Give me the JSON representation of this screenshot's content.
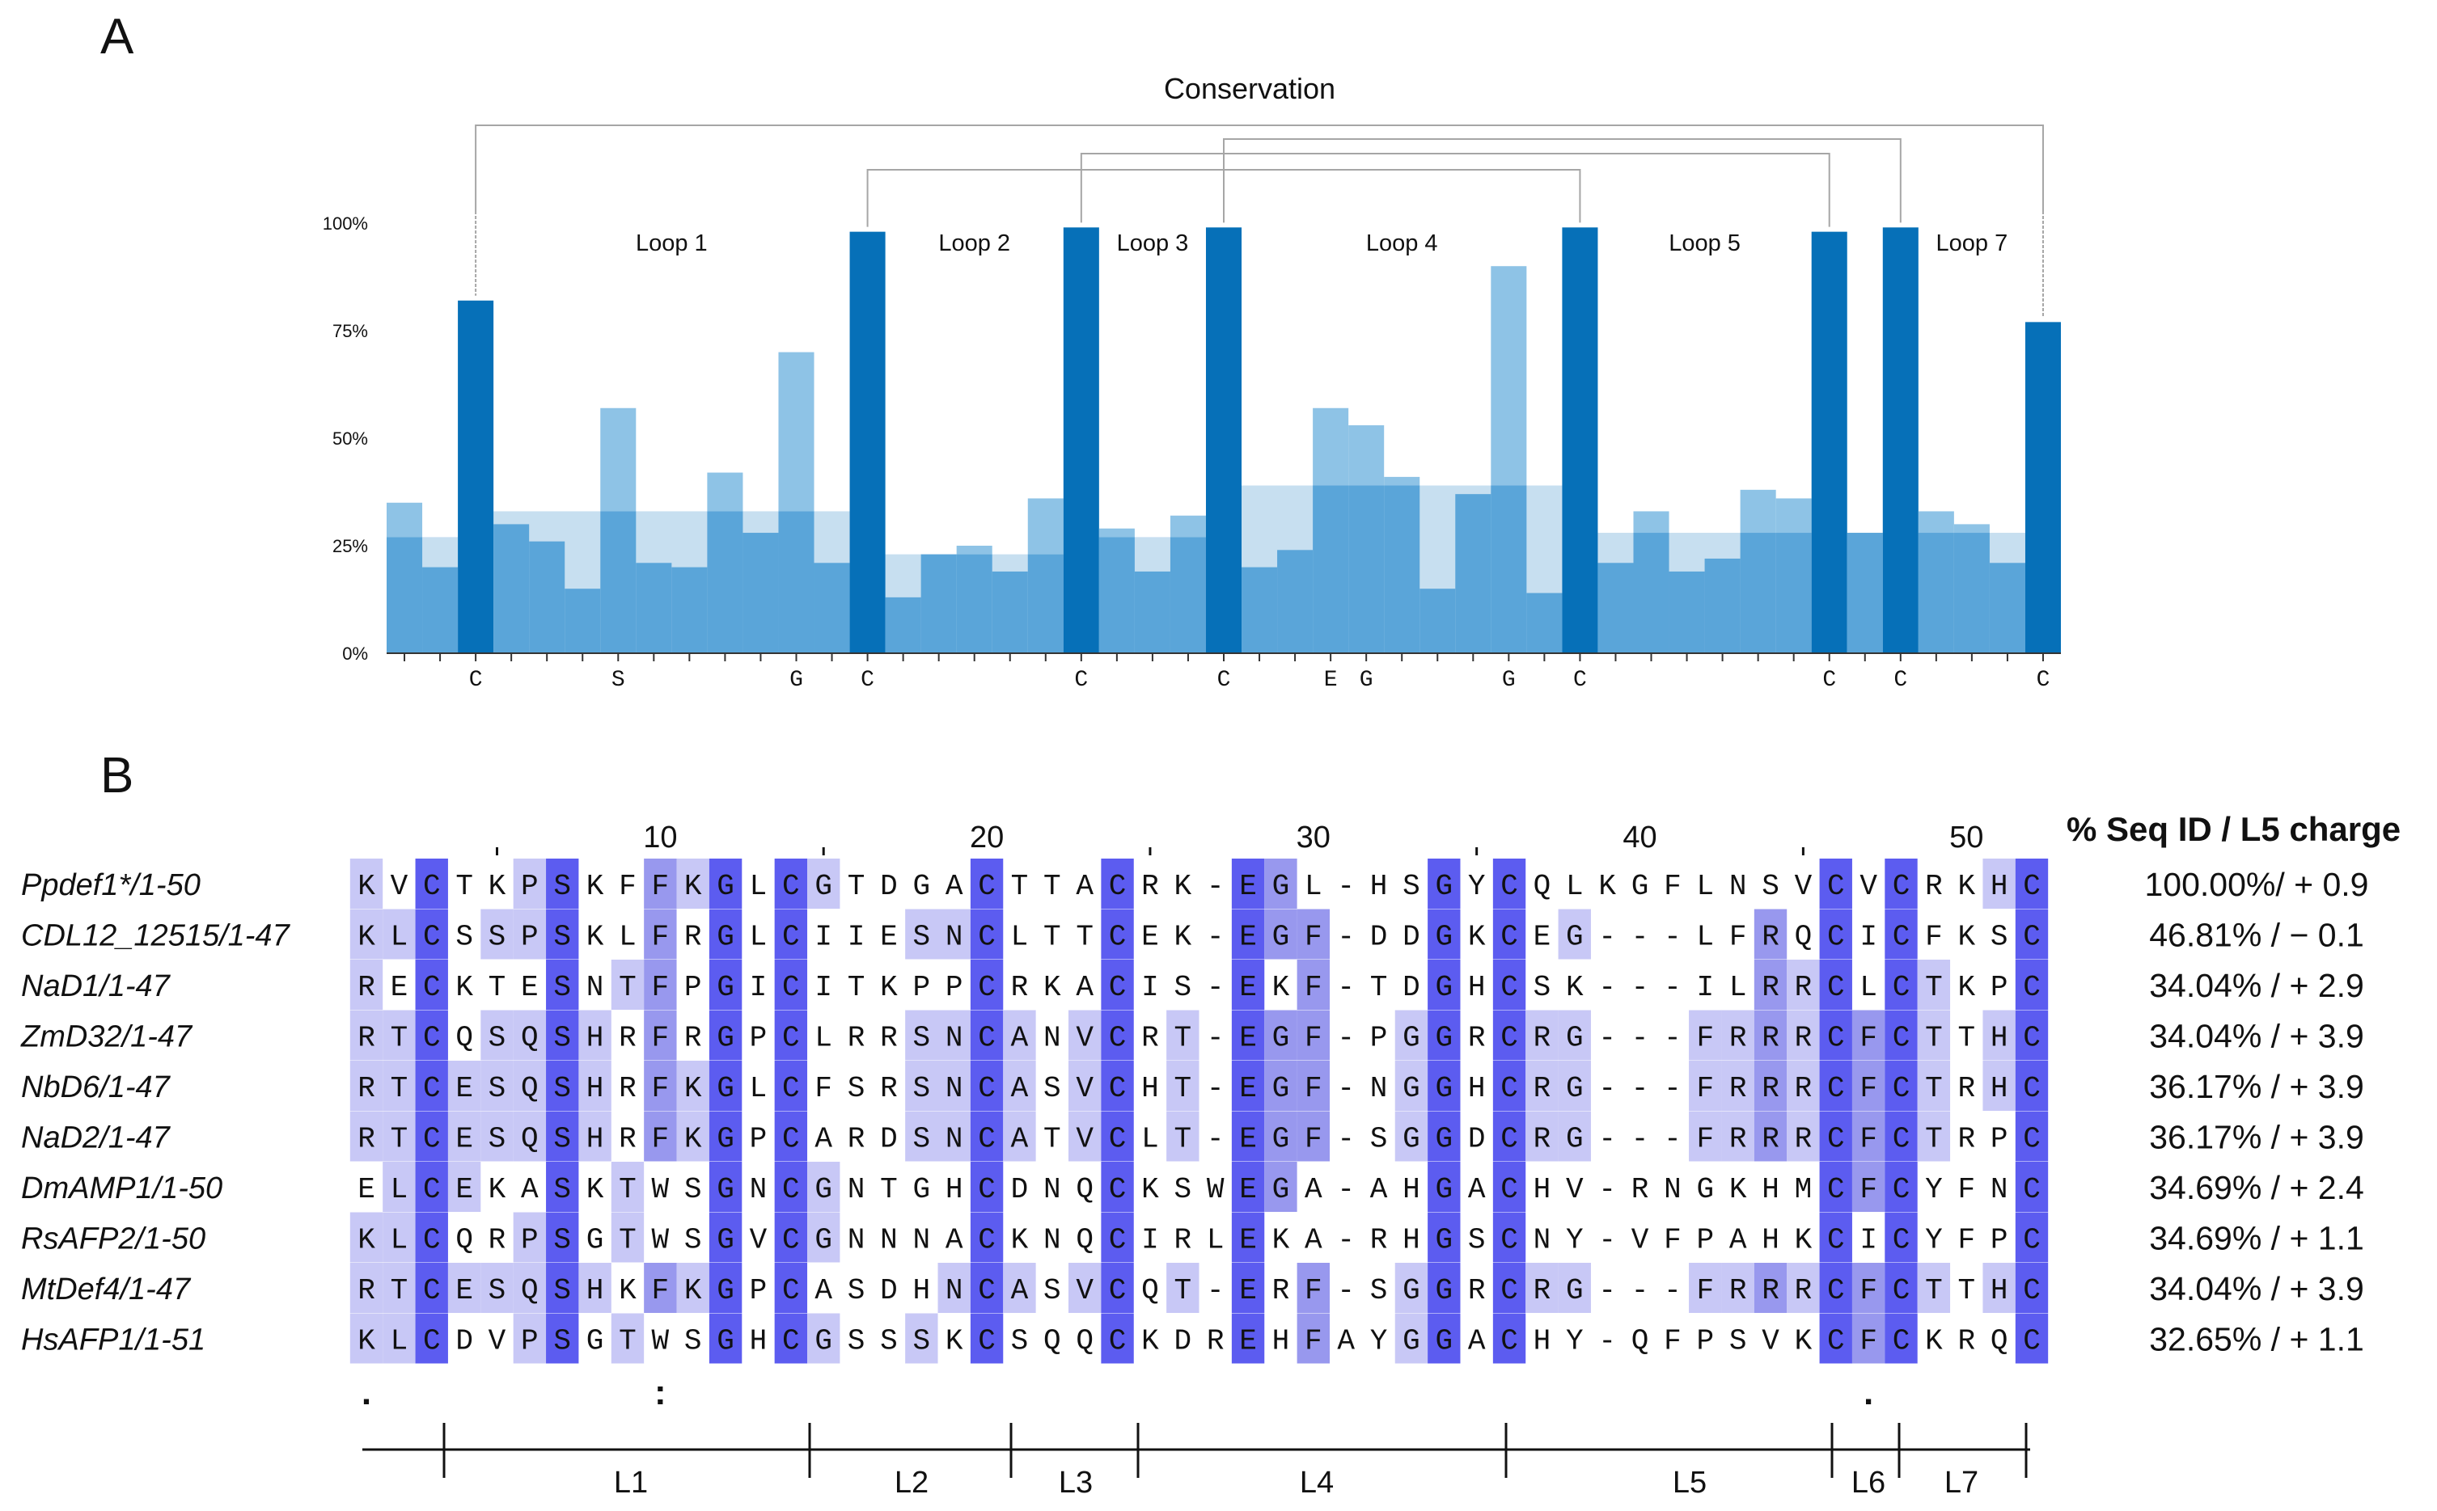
{
  "panel_a": {
    "label": "A",
    "title": "Conservation",
    "yticks": [
      "0%",
      "25%",
      "50%",
      "75%",
      "100%"
    ],
    "loops": [
      "Loop 1",
      "Loop 2",
      "Loop 3",
      "Loop 4",
      "Loop 5",
      "Loop 7"
    ],
    "colors": {
      "cys_bar": "#0670b8",
      "bar": "#5aa5d9",
      "light_bar": "#8ec3e6",
      "shade": "#c7dff0",
      "bracket": "#a6a6a6"
    },
    "chart_data": {
      "type": "bar",
      "title": "Conservation",
      "ylim": [
        0,
        100
      ],
      "ylabel_ticks": [
        0,
        25,
        50,
        75,
        100
      ],
      "positions": 47,
      "values": [
        35,
        20,
        82,
        30,
        26,
        15,
        57,
        21,
        20,
        42,
        28,
        70,
        21,
        98,
        13,
        23,
        25,
        19,
        36,
        99,
        29,
        19,
        32,
        99,
        20,
        24,
        57,
        53,
        41,
        15,
        37,
        90,
        14,
        99,
        21,
        33,
        19,
        22,
        38,
        36,
        98,
        28,
        99,
        33,
        30,
        21,
        77
      ],
      "cysteine_positions": [
        3,
        14,
        20,
        24,
        34,
        41,
        43,
        47
      ],
      "consensus_residues": [
        {
          "pos": 3,
          "res": "C"
        },
        {
          "pos": 7,
          "res": "S"
        },
        {
          "pos": 12,
          "res": "G"
        },
        {
          "pos": 14,
          "res": "C"
        },
        {
          "pos": 20,
          "res": "C"
        },
        {
          "pos": 24,
          "res": "C"
        },
        {
          "pos": 27,
          "res": "E"
        },
        {
          "pos": 28,
          "res": "G"
        },
        {
          "pos": 32,
          "res": "G"
        },
        {
          "pos": 34,
          "res": "C"
        },
        {
          "pos": 41,
          "res": "C"
        },
        {
          "pos": 43,
          "res": "C"
        },
        {
          "pos": 47,
          "res": "C"
        }
      ],
      "background_bands": [
        {
          "from": 1,
          "to": 2,
          "value": 27
        },
        {
          "from": 4,
          "to": 13,
          "value": 33
        },
        {
          "from": 15,
          "to": 19,
          "value": 23
        },
        {
          "from": 21,
          "to": 23,
          "value": 27
        },
        {
          "from": 25,
          "to": 33,
          "value": 39
        },
        {
          "from": 35,
          "to": 40,
          "value": 28
        },
        {
          "from": 42,
          "to": 42,
          "value": 28
        },
        {
          "from": 44,
          "to": 46,
          "value": 28
        }
      ],
      "disulfide_brackets": [
        [
          3,
          47
        ],
        [
          14,
          34
        ],
        [
          20,
          41
        ],
        [
          24,
          43
        ]
      ]
    }
  },
  "panel_b": {
    "label": "B",
    "stats_header": "% Seq ID / L5 charge",
    "position_labels": [
      "10",
      "20",
      "30",
      "40",
      "50"
    ],
    "colors": {
      "dark": "#5c5cf0",
      "mid": "#9898ee",
      "light": "#c8c8f6"
    },
    "sequences": [
      {
        "name": "Ppdef1*/1-50",
        "seq": "KVCTKPSKFFKGLCGTDGACTTACRK-EGL-HSGYCQLKGFLNSVCVCRKHC",
        "stat": "100.00%/ + 0.9"
      },
      {
        "name": "CDL12_12515/1-47",
        "seq": "KLCSSPSKLFRGLCIIESNCLTTCEK-EGF-DDGKCEG---LFRQCICFKSC",
        "stat": "46.81% / − 0.1"
      },
      {
        "name": "NaD1/1-47",
        "seq": "RECKTESNTFPGICITKPPCRKACIS-EKF-TDGHCSK---ILRRCLCTKPC",
        "stat": "34.04% / + 2.9"
      },
      {
        "name": "ZmD32/1-47",
        "seq": "RTCQSQSHRFRGPCLRRSNCANVCRT-EGF-PGGRCRG---FRRRCFCTTHC",
        "stat": "34.04% / + 3.9"
      },
      {
        "name": "NbD6/1-47",
        "seq": "RTCESQSHRFKGLCFSRSNCASVCHT-EGF-NGGHCRG---FRRRCFCTRHC",
        "stat": "36.17% / + 3.9"
      },
      {
        "name": "NaD2/1-47",
        "seq": "RTCESQSHRFKGPCARDSNCATVCLT-EGF-SGGDCRG---FRRRCFCTRPC",
        "stat": "36.17% / + 3.9"
      },
      {
        "name": "DmAMP1/1-50",
        "seq": "ELCEKASKTWSGNCGNTGHCDNQCKSWEGA-AHGACHV-RNGKHMCFCYFNC",
        "stat": "34.69% / + 2.4"
      },
      {
        "name": "RsAFP2/1-50",
        "seq": "KLCQRPSGTWSGVCGNNNACKNQCIRLEKA-RHGSCNY-VFPAHKCICYFPC",
        "stat": "34.69% / + 1.1"
      },
      {
        "name": "MtDef4/1-47",
        "seq": "RTCESQSHKFKGPCASDHNCASVCQT-ERF-SGGRCRG---FRRRCFCTTHC",
        "stat": "34.04% / + 3.9"
      },
      {
        "name": "HsAFP1/1-51",
        "seq": "KLCDVPSGTWSGHCGSSSKCSQQCKDREHFAYGGACHY-QFPSVKCFCKRQC",
        "stat": "32.65% / + 1.1"
      }
    ],
    "conservation_markers": [
      ".",
      ":",
      "."
    ],
    "regions": [
      "L1",
      "L2",
      "L3",
      "L4",
      "L5",
      "L6",
      "L7"
    ]
  }
}
